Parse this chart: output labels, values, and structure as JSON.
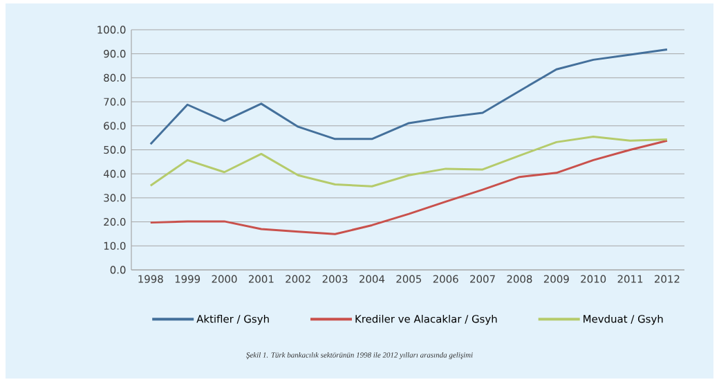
{
  "chart_data": {
    "type": "line",
    "categories": [
      "1998",
      "1999",
      "2000",
      "2001",
      "2002",
      "2003",
      "2004",
      "2005",
      "2006",
      "2007",
      "2008",
      "2009",
      "2010",
      "2011",
      "2012"
    ],
    "series": [
      {
        "name": "Aktifler / Gsyh",
        "color": "#44709b",
        "values": [
          52.4,
          68.8,
          62.0,
          69.2,
          59.6,
          54.5,
          54.5,
          61.1,
          63.5,
          65.4,
          74.5,
          83.5,
          87.5,
          89.6,
          91.8
        ]
      },
      {
        "name": "Krediler ve Alacaklar / Gsyh",
        "color": "#c9514c",
        "values": [
          19.7,
          20.2,
          20.2,
          17.0,
          15.9,
          14.9,
          18.6,
          23.3,
          28.4,
          33.4,
          38.7,
          40.4,
          45.7,
          50.0,
          53.8
        ]
      },
      {
        "name": "Mevduat / Gsyh",
        "color": "#b5cb6b",
        "values": [
          35.1,
          45.7,
          40.7,
          48.3,
          39.4,
          35.6,
          34.8,
          39.4,
          42.1,
          41.8,
          47.6,
          53.2,
          55.5,
          53.8,
          54.3
        ]
      }
    ],
    "ylim": [
      0,
      100
    ],
    "yticks": [
      {
        "value": 0,
        "label": "0.0"
      },
      {
        "value": 10,
        "label": "10.0"
      },
      {
        "value": 20,
        "label": "20.0"
      },
      {
        "value": 30,
        "label": "30.0"
      },
      {
        "value": 40,
        "label": "40.0"
      },
      {
        "value": 50,
        "label": "50.0"
      },
      {
        "value": 60,
        "label": "60.0"
      },
      {
        "value": 70,
        "label": "70.0"
      },
      {
        "value": 80,
        "label": "80.0"
      },
      {
        "value": 90,
        "label": "90.0"
      },
      {
        "value": 100,
        "label": "100.0"
      }
    ],
    "grid": "y",
    "legend": "bottom",
    "marker": "none",
    "line_style": "solid",
    "annotations": [
      "Şekil 1. Türk bankacılık sektörünün 1998 ile 2012 yılları arasında gelişimi"
    ]
  }
}
